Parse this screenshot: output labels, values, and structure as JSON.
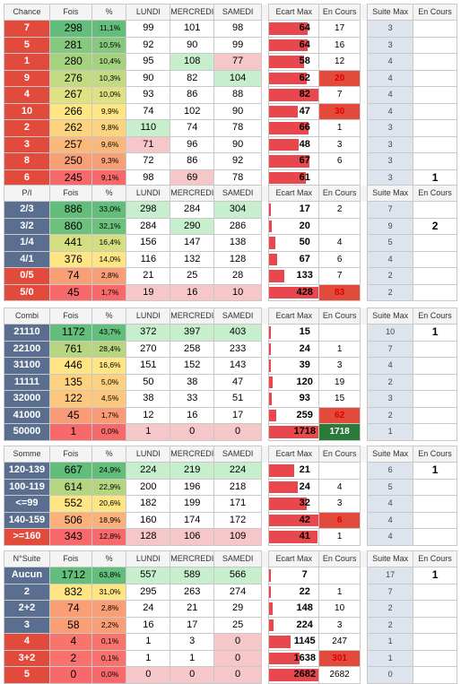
{
  "headers": {
    "fois": "Fois",
    "pct": "%",
    "lundi": "LUNDI",
    "mercredi": "MERCREDI",
    "samedi": "SAMEDI",
    "ecart_max": "Ecart Max",
    "en_cours": "En Cours",
    "suite_max": "Suite Max",
    "en_cours2": "En Cours"
  },
  "colors": {
    "label_blue": "#5a6f8f",
    "label_red": "#e24b3b",
    "bar_red": "#e8474d",
    "green_high": "#63be7b",
    "yellow_mid": "#ffe083",
    "red_low": "#f8696b",
    "light_green": "#c7efce",
    "light_red": "#f6c7c8",
    "suite_bg": "#dde4ee"
  },
  "tables": [
    {
      "title": "Chance",
      "rows": [
        {
          "label": "7",
          "fois": "298",
          "pct": "11,1%",
          "lundi": "99",
          "mercredi": "101",
          "samedi": "98",
          "ecart": "64",
          "en_cours": "17",
          "suite": "3",
          "en_cours2": ""
        },
        {
          "label": "5",
          "fois": "281",
          "pct": "10,5%",
          "lundi": "92",
          "mercredi": "90",
          "samedi": "99",
          "ecart": "64",
          "en_cours": "16",
          "suite": "3",
          "en_cours2": ""
        },
        {
          "label": "1",
          "fois": "280",
          "pct": "10,4%",
          "lundi": "95",
          "mercredi": "108",
          "samedi": "77",
          "ecart": "58",
          "en_cours": "12",
          "suite": "4",
          "en_cours2": ""
        },
        {
          "label": "9",
          "fois": "276",
          "pct": "10,3%",
          "lundi": "90",
          "mercredi": "82",
          "samedi": "104",
          "ecart": "62",
          "en_cours": "20",
          "suite": "4",
          "en_cours2": ""
        },
        {
          "label": "4",
          "fois": "267",
          "pct": "10,0%",
          "lundi": "93",
          "mercredi": "86",
          "samedi": "88",
          "ecart": "82",
          "en_cours": "7",
          "suite": "4",
          "en_cours2": ""
        },
        {
          "label": "10",
          "fois": "266",
          "pct": "9,9%",
          "lundi": "74",
          "mercredi": "102",
          "samedi": "90",
          "ecart": "47",
          "en_cours": "30",
          "suite": "4",
          "en_cours2": ""
        },
        {
          "label": "2",
          "fois": "262",
          "pct": "9,8%",
          "lundi": "110",
          "mercredi": "74",
          "samedi": "78",
          "ecart": "66",
          "en_cours": "1",
          "suite": "3",
          "en_cours2": ""
        },
        {
          "label": "3",
          "fois": "257",
          "pct": "9,6%",
          "lundi": "71",
          "mercredi": "96",
          "samedi": "90",
          "ecart": "48",
          "en_cours": "3",
          "suite": "3",
          "en_cours2": ""
        },
        {
          "label": "8",
          "fois": "250",
          "pct": "9,3%",
          "lundi": "72",
          "mercredi": "86",
          "samedi": "92",
          "ecart": "67",
          "en_cours": "6",
          "suite": "3",
          "en_cours2": ""
        },
        {
          "label": "6",
          "fois": "245",
          "pct": "9,1%",
          "lundi": "98",
          "mercredi": "69",
          "samedi": "78",
          "ecart": "61",
          "en_cours": "",
          "suite": "3",
          "en_cours2": "1"
        }
      ]
    },
    {
      "title": "P/I",
      "rows": [
        {
          "label": "2/3",
          "fois": "886",
          "pct": "33,0%",
          "lundi": "298",
          "mercredi": "284",
          "samedi": "304",
          "ecart": "17",
          "en_cours": "2",
          "suite": "7",
          "en_cours2": ""
        },
        {
          "label": "3/2",
          "fois": "860",
          "pct": "32,1%",
          "lundi": "284",
          "mercredi": "290",
          "samedi": "286",
          "ecart": "20",
          "en_cours": "",
          "suite": "9",
          "en_cours2": "2"
        },
        {
          "label": "1/4",
          "fois": "441",
          "pct": "16,4%",
          "lundi": "156",
          "mercredi": "147",
          "samedi": "138",
          "ecart": "50",
          "en_cours": "4",
          "suite": "5",
          "en_cours2": ""
        },
        {
          "label": "4/1",
          "fois": "376",
          "pct": "14,0%",
          "lundi": "116",
          "mercredi": "132",
          "samedi": "128",
          "ecart": "67",
          "en_cours": "6",
          "suite": "4",
          "en_cours2": ""
        },
        {
          "label": "0/5",
          "fois": "74",
          "pct": "2,8%",
          "lundi": "21",
          "mercredi": "25",
          "samedi": "28",
          "ecart": "133",
          "en_cours": "7",
          "suite": "2",
          "en_cours2": ""
        },
        {
          "label": "5/0",
          "fois": "45",
          "pct": "1,7%",
          "lundi": "19",
          "mercredi": "16",
          "samedi": "10",
          "ecart": "428",
          "en_cours": "83",
          "suite": "2",
          "en_cours2": ""
        }
      ]
    },
    {
      "title": "Combi",
      "rows": [
        {
          "label": "21110",
          "fois": "1172",
          "pct": "43,7%",
          "lundi": "372",
          "mercredi": "397",
          "samedi": "403",
          "ecart": "15",
          "en_cours": "",
          "suite": "10",
          "en_cours2": "1"
        },
        {
          "label": "22100",
          "fois": "761",
          "pct": "28,4%",
          "lundi": "270",
          "mercredi": "258",
          "samedi": "233",
          "ecart": "24",
          "en_cours": "1",
          "suite": "7",
          "en_cours2": ""
        },
        {
          "label": "31100",
          "fois": "446",
          "pct": "16,6%",
          "lundi": "151",
          "mercredi": "152",
          "samedi": "143",
          "ecart": "39",
          "en_cours": "3",
          "suite": "4",
          "en_cours2": ""
        },
        {
          "label": "11111",
          "fois": "135",
          "pct": "5,0%",
          "lundi": "50",
          "mercredi": "38",
          "samedi": "47",
          "ecart": "120",
          "en_cours": "19",
          "suite": "2",
          "en_cours2": ""
        },
        {
          "label": "32000",
          "fois": "122",
          "pct": "4,5%",
          "lundi": "38",
          "mercredi": "33",
          "samedi": "51",
          "ecart": "93",
          "en_cours": "15",
          "suite": "3",
          "en_cours2": ""
        },
        {
          "label": "41000",
          "fois": "45",
          "pct": "1,7%",
          "lundi": "12",
          "mercredi": "16",
          "samedi": "17",
          "ecart": "259",
          "en_cours": "62",
          "suite": "2",
          "en_cours2": ""
        },
        {
          "label": "50000",
          "fois": "1",
          "pct": "0,0%",
          "lundi": "1",
          "mercredi": "0",
          "samedi": "0",
          "ecart": "1718",
          "en_cours": "1718",
          "suite": "1",
          "en_cours2": ""
        }
      ]
    },
    {
      "title": "Somme",
      "rows": [
        {
          "label": "120-139",
          "fois": "667",
          "pct": "24,9%",
          "lundi": "224",
          "mercredi": "219",
          "samedi": "224",
          "ecart": "21",
          "en_cours": "",
          "suite": "6",
          "en_cours2": "1"
        },
        {
          "label": "100-119",
          "fois": "614",
          "pct": "22,9%",
          "lundi": "200",
          "mercredi": "196",
          "samedi": "218",
          "ecart": "24",
          "en_cours": "4",
          "suite": "5",
          "en_cours2": ""
        },
        {
          "label": "<=99",
          "fois": "552",
          "pct": "20,6%",
          "lundi": "182",
          "mercredi": "199",
          "samedi": "171",
          "ecart": "32",
          "en_cours": "3",
          "suite": "4",
          "en_cours2": ""
        },
        {
          "label": "140-159",
          "fois": "506",
          "pct": "18,9%",
          "lundi": "160",
          "mercredi": "174",
          "samedi": "172",
          "ecart": "42",
          "en_cours": "6",
          "suite": "4",
          "en_cours2": ""
        },
        {
          "label": ">=160",
          "fois": "343",
          "pct": "12,8%",
          "lundi": "128",
          "mercredi": "106",
          "samedi": "109",
          "ecart": "41",
          "en_cours": "1",
          "suite": "4",
          "en_cours2": ""
        }
      ]
    },
    {
      "title": "N°Suite",
      "rows": [
        {
          "label": "Aucun",
          "fois": "1712",
          "pct": "63,8%",
          "lundi": "557",
          "mercredi": "589",
          "samedi": "566",
          "ecart": "7",
          "en_cours": "",
          "suite": "17",
          "en_cours2": "1"
        },
        {
          "label": "2",
          "fois": "832",
          "pct": "31,0%",
          "lundi": "295",
          "mercredi": "263",
          "samedi": "274",
          "ecart": "22",
          "en_cours": "1",
          "suite": "7",
          "en_cours2": ""
        },
        {
          "label": "2+2",
          "fois": "74",
          "pct": "2,8%",
          "lundi": "24",
          "mercredi": "21",
          "samedi": "29",
          "ecart": "148",
          "en_cours": "10",
          "suite": "2",
          "en_cours2": ""
        },
        {
          "label": "3",
          "fois": "58",
          "pct": "2,2%",
          "lundi": "16",
          "mercredi": "17",
          "samedi": "25",
          "ecart": "224",
          "en_cours": "3",
          "suite": "2",
          "en_cours2": ""
        },
        {
          "label": "4",
          "fois": "4",
          "pct": "0,1%",
          "lundi": "1",
          "mercredi": "3",
          "samedi": "0",
          "ecart": "1145",
          "en_cours": "247",
          "suite": "1",
          "en_cours2": ""
        },
        {
          "label": "3+2",
          "fois": "2",
          "pct": "0,1%",
          "lundi": "1",
          "mercredi": "1",
          "samedi": "0",
          "ecart": "1638",
          "en_cours": "301",
          "suite": "1",
          "en_cours2": ""
        },
        {
          "label": "5",
          "fois": "0",
          "pct": "0,0%",
          "lundi": "0",
          "mercredi": "0",
          "samedi": "0",
          "ecart": "2682",
          "en_cours": "2682",
          "suite": "0",
          "en_cours2": ""
        }
      ]
    }
  ]
}
